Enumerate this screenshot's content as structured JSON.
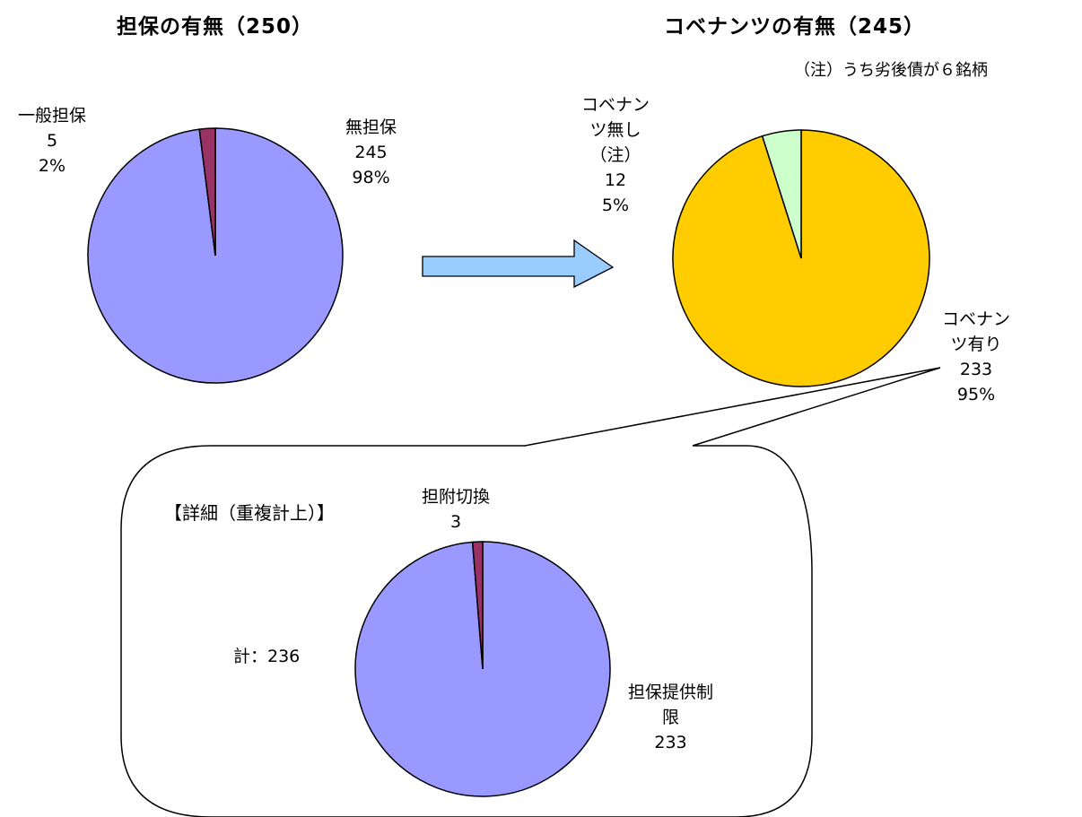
{
  "chart_data": [
    {
      "type": "pie",
      "title": "担保の有無（250）",
      "slices": [
        {
          "name": "無担保",
          "value": 245,
          "percent": "98%",
          "color": "#9999ff"
        },
        {
          "name": "一般担保",
          "value": 5,
          "percent": "2%",
          "color": "#993366"
        }
      ]
    },
    {
      "type": "pie",
      "title": "コベナンツの有無（245）",
      "note": "（注）うち劣後債が６銘柄",
      "slices": [
        {
          "name_lines": [
            "コベナン",
            "ツ有り"
          ],
          "value": 233,
          "percent": "95%",
          "color": "#ffcc00"
        },
        {
          "name_lines": [
            "コベナン",
            "ツ無し",
            "（注）"
          ],
          "value": 12,
          "percent": "5%",
          "color": "#ccffcc"
        }
      ]
    },
    {
      "type": "pie",
      "title": "【詳細（重複計上）】",
      "total_label": "計：236",
      "slices": [
        {
          "name_lines": [
            "担保提供制",
            "限"
          ],
          "value": 233,
          "color": "#9999ff"
        },
        {
          "name_lines": [
            "担附切換"
          ],
          "value": 3,
          "color": "#993366"
        }
      ]
    }
  ],
  "colors": {
    "stroke": "#000000",
    "arrow_fill": "#99ccff"
  }
}
